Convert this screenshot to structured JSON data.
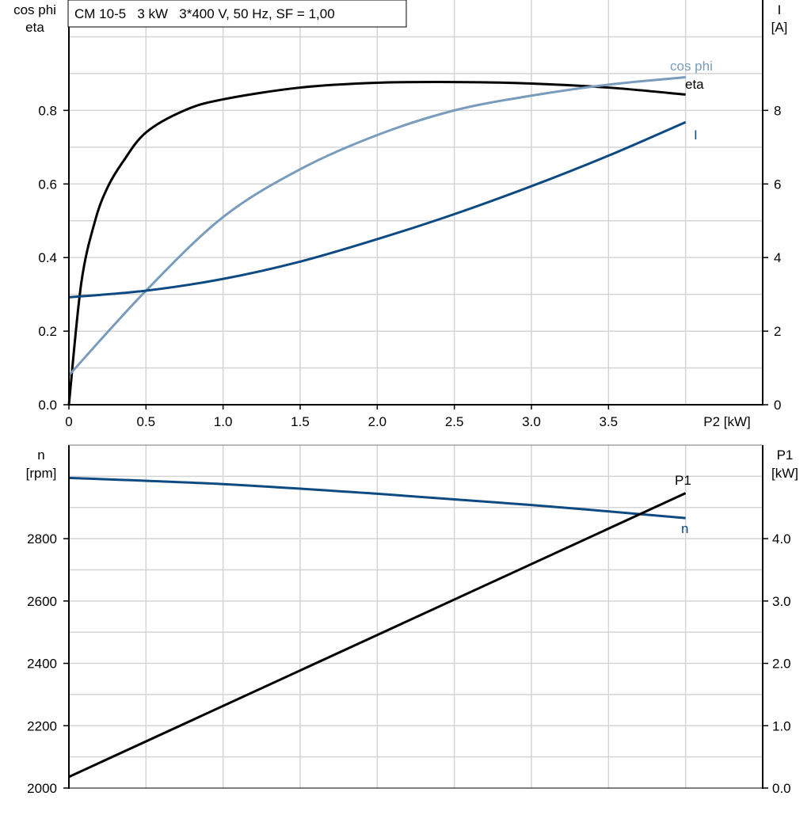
{
  "chart_data": [
    {
      "type": "line",
      "title": "CM 10-5   3 kW   3*400 V, 50 Hz, SF = 1,00",
      "xlabel": "P2 [kW]",
      "ylabel_left": [
        "cos phi",
        "eta"
      ],
      "ylabel_right": [
        "I",
        "[A]"
      ],
      "xlim": [
        0,
        4.5
      ],
      "ylim_left": [
        0,
        1.1
      ],
      "ylim_right": [
        0,
        11
      ],
      "grid": true,
      "x_ticks": [
        "0",
        "0.5",
        "1.0",
        "1.5",
        "2.0",
        "2.5",
        "3.0",
        "3.5"
      ],
      "y_left_ticks": [
        "0.0",
        "0.2",
        "0.4",
        "0.6",
        "0.8"
      ],
      "y_right_ticks": [
        "0",
        "2",
        "4",
        "6",
        "8"
      ],
      "series": [
        {
          "name": "eta",
          "axis": "left",
          "color": "#000000",
          "x": [
            0,
            0.08,
            0.17,
            0.25,
            0.35,
            0.5,
            0.75,
            1.0,
            1.5,
            2.0,
            2.5,
            3.0,
            3.5,
            4.0
          ],
          "y": [
            0,
            0.33,
            0.5,
            0.59,
            0.66,
            0.74,
            0.8,
            0.83,
            0.862,
            0.875,
            0.877,
            0.873,
            0.862,
            0.843
          ]
        },
        {
          "name": "cos phi",
          "axis": "left",
          "color": "#7a9cbc",
          "x": [
            0,
            0.5,
            1.0,
            1.5,
            2.0,
            2.5,
            3.0,
            3.5,
            4.0
          ],
          "y": [
            0.08,
            0.31,
            0.51,
            0.64,
            0.733,
            0.8,
            0.84,
            0.87,
            0.89
          ]
        },
        {
          "name": "I",
          "axis": "right",
          "color": "#0d4a82",
          "x": [
            0,
            0.5,
            1.0,
            1.5,
            2.0,
            2.5,
            3.0,
            3.5,
            4.0
          ],
          "y": [
            2.92,
            3.1,
            3.42,
            3.89,
            4.5,
            5.18,
            5.94,
            6.77,
            7.68
          ]
        }
      ]
    },
    {
      "type": "line",
      "xlim": [
        0,
        4.5
      ],
      "ylabel_left": [
        "n",
        "[rpm]"
      ],
      "ylabel_right": [
        "P1",
        "[kW]"
      ],
      "ylim_left": [
        2000,
        3100
      ],
      "ylim_right": [
        0,
        5.5
      ],
      "grid": true,
      "y_left_ticks": [
        "2000",
        "2200",
        "2400",
        "2600",
        "2800"
      ],
      "y_right_ticks": [
        "0.0",
        "1.0",
        "2.0",
        "3.0",
        "4.0"
      ],
      "series": [
        {
          "name": "n",
          "axis": "left",
          "color": "#0d4a82",
          "x": [
            0,
            1.0,
            2.0,
            3.0,
            4.0
          ],
          "y": [
            2995,
            2975,
            2944,
            2908,
            2866
          ]
        },
        {
          "name": "P1",
          "axis": "right",
          "color": "#000000",
          "x": [
            0,
            4.0
          ],
          "y": [
            0.18,
            4.73
          ]
        }
      ]
    }
  ]
}
